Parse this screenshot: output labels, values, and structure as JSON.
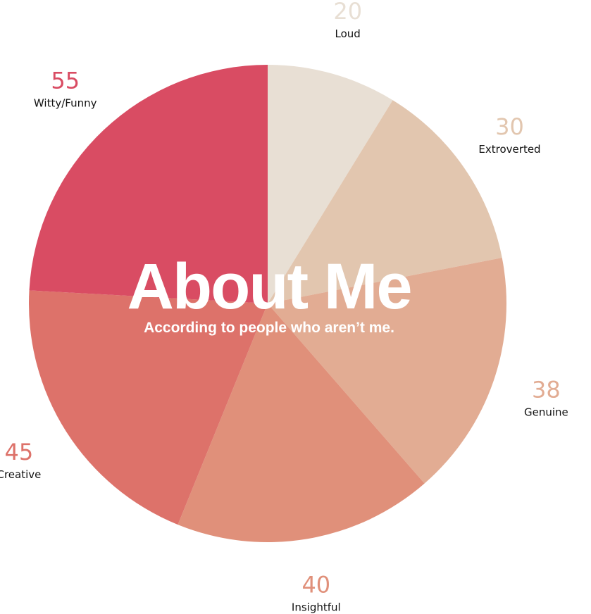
{
  "chart_data": {
    "type": "pie",
    "title": "About Me",
    "subtitle": "According to people who aren’t me.",
    "slices": [
      {
        "label": "Loud",
        "value": 20,
        "color": "#E8DFD4",
        "text_color": "#E8DFD4"
      },
      {
        "label": "Extroverted",
        "value": 30,
        "color": "#E2C6AF",
        "text_color": "#E2C6AF"
      },
      {
        "label": "Genuine",
        "value": 38,
        "color": "#E2AC93",
        "text_color": "#E2AC93"
      },
      {
        "label": "Insightful",
        "value": 40,
        "color": "#E0907A",
        "text_color": "#E0907A"
      },
      {
        "label": "Creative",
        "value": 45,
        "color": "#DD726A",
        "text_color": "#DD726A"
      },
      {
        "label": "Witty/Funny",
        "value": 55,
        "color": "#D94C63",
        "text_color": "#D94C63"
      }
    ],
    "start": "12 o'clock",
    "direction": "clockwise",
    "legend": "none"
  }
}
